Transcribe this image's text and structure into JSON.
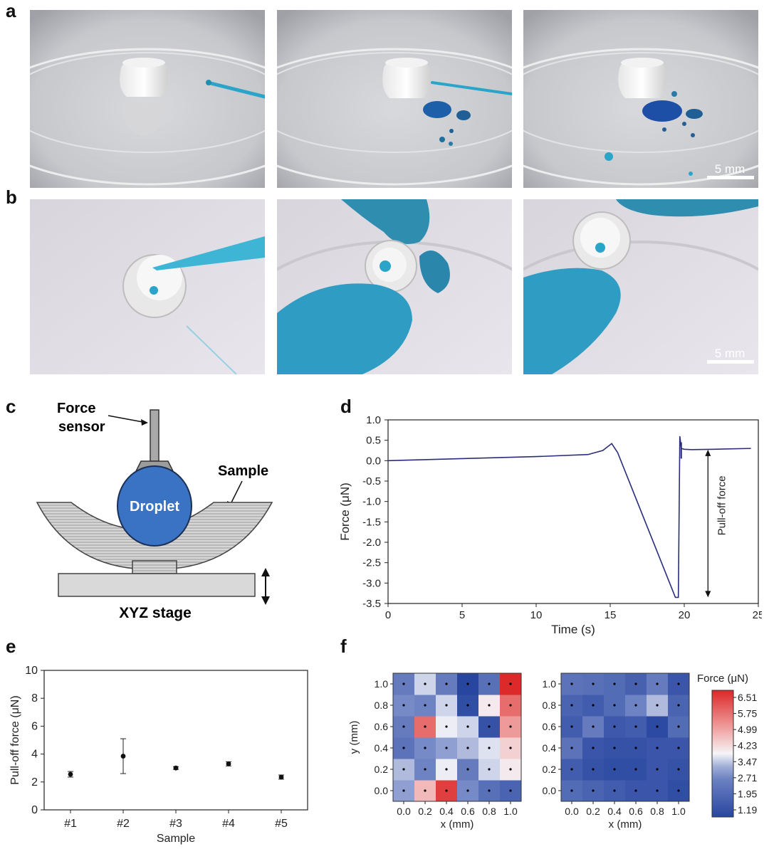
{
  "panels": {
    "a": "a",
    "b": "b",
    "c": "c",
    "d": "d",
    "e": "e",
    "f": "f"
  },
  "scale_bars": {
    "a": "5 mm",
    "b": "5 mm"
  },
  "schematic": {
    "force_sensor": [
      "Force",
      "sensor"
    ],
    "sample": "Sample",
    "droplet": "Droplet",
    "stage": "XYZ stage",
    "colors": {
      "droplet": "#3a72c4",
      "sample": "#c8c8c8",
      "stage": "#d9d9d9"
    }
  },
  "chart_data": [
    {
      "id": "d",
      "type": "line",
      "xlabel": "Time (s)",
      "ylabel": "Force (μN)",
      "xlim": [
        0,
        25
      ],
      "ylim": [
        -3.5,
        1.0
      ],
      "xticks": [
        "0",
        "5",
        "10",
        "15",
        "20",
        "25"
      ],
      "yticks": [
        "1.0",
        "0.5",
        "0.0",
        "-0.5",
        "-1.0",
        "-1.5",
        "-2.0",
        "-2.5",
        "-3.0",
        "-3.5"
      ],
      "annotation": "Pull-off force",
      "line_color": "#2b2d7a",
      "x": [
        0,
        5,
        10,
        13.5,
        14.5,
        15.1,
        15.5,
        19.4,
        19.6,
        19.7,
        19.8,
        20.0,
        20.5,
        22,
        24.5
      ],
      "y": [
        0.0,
        0.05,
        0.1,
        0.15,
        0.25,
        0.42,
        0.2,
        -3.35,
        -3.35,
        0.6,
        0.3,
        0.28,
        0.27,
        0.28,
        0.3
      ]
    },
    {
      "id": "e",
      "type": "scatter",
      "xlabel": "Sample",
      "ylabel": "Pull-off force (μN)",
      "ylim": [
        0,
        10
      ],
      "yticks": [
        "0",
        "2",
        "4",
        "6",
        "8",
        "10"
      ],
      "categories": [
        "#1",
        "#2",
        "#3",
        "#4",
        "#5"
      ],
      "values": [
        2.55,
        3.85,
        3.0,
        3.3,
        2.35
      ],
      "errors": [
        0.2,
        1.25,
        0.1,
        0.15,
        0.15
      ]
    },
    {
      "id": "f",
      "type": "heatmap",
      "xlabel": "x (mm)",
      "ylabel": "y (mm)",
      "xticks": [
        "0.0",
        "0.2",
        "0.4",
        "0.6",
        "0.8",
        "1.0"
      ],
      "yticks": [
        "0.0",
        "0.2",
        "0.4",
        "0.6",
        "0.8",
        "1.0"
      ],
      "colorbar_title": "Force (μN)",
      "colorbar_ticks": [
        "6.51",
        "5.75",
        "4.99",
        "4.23",
        "3.47",
        "2.71",
        "1.95",
        "1.19"
      ],
      "vmin": 1.19,
      "vmax": 6.51,
      "maps": [
        [
          [
            3.2,
            4.6,
            6.2,
            3.0,
            2.3,
            2.0
          ],
          [
            3.4,
            2.8,
            3.8,
            2.6,
            3.6,
            4.0
          ],
          [
            2.4,
            3.0,
            3.2,
            3.4,
            3.7,
            4.3
          ],
          [
            2.6,
            5.6,
            3.8,
            3.6,
            1.5,
            5.0
          ],
          [
            3.0,
            2.8,
            3.6,
            1.4,
            4.0,
            5.6
          ],
          [
            2.6,
            3.6,
            2.6,
            1.2,
            2.3,
            6.5
          ]
        ],
        [
          [
            2.2,
            2.0,
            1.8,
            1.6,
            1.6,
            1.4
          ],
          [
            1.8,
            1.5,
            1.4,
            1.4,
            1.6,
            1.5
          ],
          [
            2.4,
            1.6,
            1.5,
            1.5,
            1.6,
            1.6
          ],
          [
            1.8,
            2.6,
            1.7,
            1.8,
            1.3,
            2.2
          ],
          [
            2.0,
            1.8,
            2.2,
            2.8,
            3.4,
            2.0
          ],
          [
            2.4,
            2.3,
            2.2,
            1.9,
            2.6,
            1.6
          ]
        ]
      ]
    }
  ]
}
